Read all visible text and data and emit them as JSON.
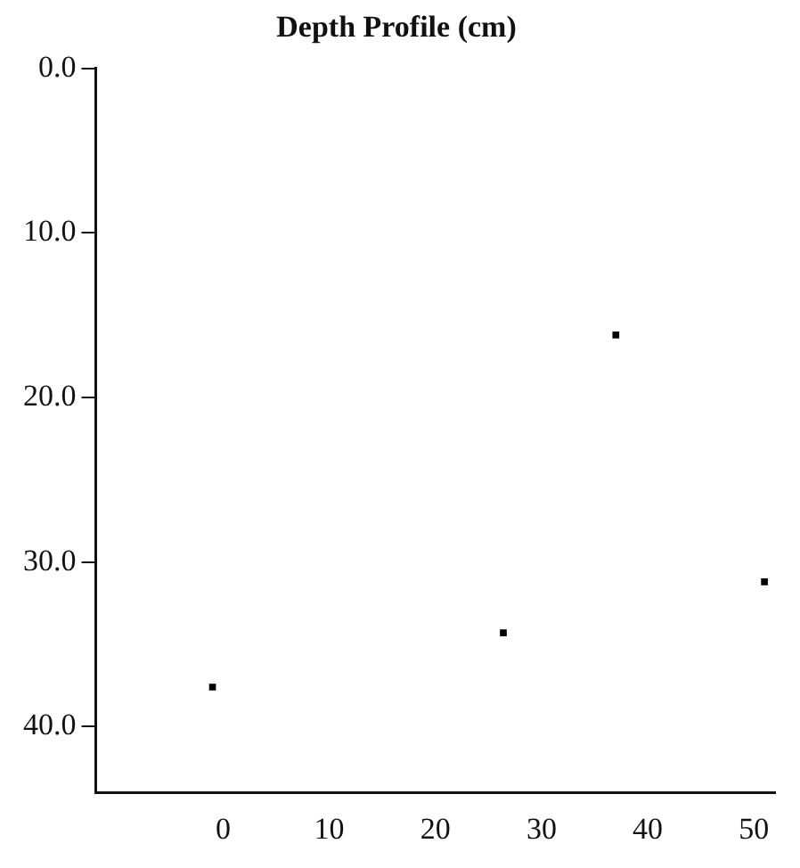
{
  "chart_data": {
    "type": "scatter",
    "title": "Depth Profile (cm)",
    "x": [
      -1,
      26.4,
      37,
      51
    ],
    "values": [
      37.6,
      34.3,
      16.2,
      31.2
    ],
    "color": "#000000",
    "marker": "square",
    "xlim": [
      -12,
      52
    ],
    "xticks": [
      0,
      10,
      20,
      30,
      40,
      50
    ],
    "ylim": [
      44,
      0
    ],
    "yticks": [
      {
        "value": 0,
        "label": "0.0"
      },
      {
        "value": 10,
        "label": "10.0"
      },
      {
        "value": 20,
        "label": "20.0"
      },
      {
        "value": 30,
        "label": "30.0"
      },
      {
        "value": 40,
        "label": "40.0"
      }
    ],
    "grid": false,
    "legend": false
  }
}
